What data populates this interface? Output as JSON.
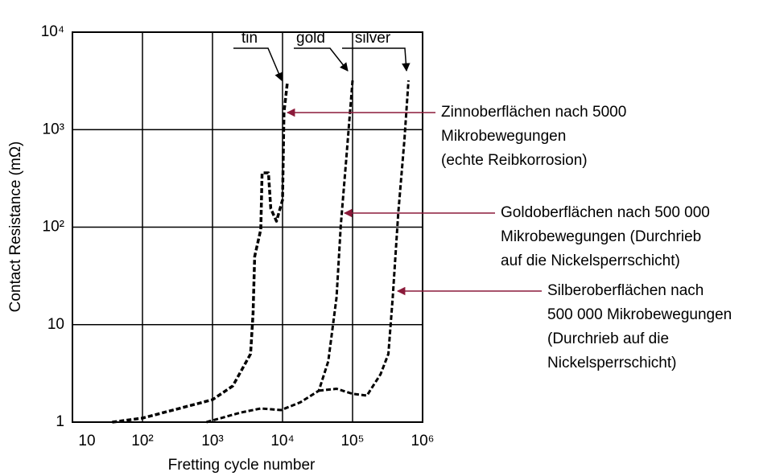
{
  "chart_data": {
    "type": "line",
    "xlabel": "Fretting cycle number",
    "ylabel": "Contact Resistance (mΩ)",
    "xscale": "log",
    "yscale": "log",
    "grid": true,
    "xlim": [
      10,
      1000000
    ],
    "xticks": [
      10,
      {
        "value": 100,
        "label": "10²"
      },
      {
        "value": 1000,
        "label": "10³"
      },
      {
        "value": 10000,
        "label": "10⁴"
      },
      {
        "value": 100000,
        "label": "10⁵"
      },
      {
        "value": 1000000,
        "label": "10⁶"
      }
    ],
    "ylim": [
      1,
      10000
    ],
    "yticks": [
      1,
      10,
      {
        "value": 100,
        "label": "10²"
      },
      {
        "value": 1000,
        "label": "10³"
      },
      {
        "value": 10000,
        "label": "10⁴"
      }
    ],
    "series": [
      {
        "name": "tin",
        "color": "#000000",
        "x": [
          37,
          100,
          1000,
          1950,
          3500,
          3800,
          4000,
          4900,
          5100,
          6300,
          6800,
          8200,
          10000,
          10500,
          11700
        ],
        "values": [
          1,
          1.1,
          1.7,
          2.35,
          5,
          13,
          50,
          95,
          360,
          360,
          155,
          115,
          190,
          1500,
          3000
        ]
      },
      {
        "name": "gold",
        "color": "#000000",
        "x": [
          820,
          2500,
          4900,
          9500,
          18000,
          33000,
          45000,
          59000,
          68000,
          81000,
          100000
        ],
        "values": [
          1,
          1.25,
          1.38,
          1.33,
          1.6,
          2.1,
          4.2,
          19,
          105,
          480,
          3200
        ]
      },
      {
        "name": "silver",
        "color": "#000000",
        "x": [
          33000,
          59000,
          100000,
          160000,
          251000,
          325000,
          375000,
          450000,
          550000,
          630000
        ],
        "values": [
          2.1,
          2.2,
          1.95,
          1.87,
          3.1,
          5,
          19,
          140,
          780,
          3200
        ]
      }
    ],
    "annotations": [
      {
        "color": "#8b1a3a",
        "lines": [
          "Zinnoberflächen nach 5000",
          "Mikrobewegungen",
          "(echte Reibkorrosion)"
        ]
      },
      {
        "color": "#8b1a3a",
        "lines": [
          "Goldoberflächen nach 500 000",
          "Mikrobewegungen (Durchrieb",
          "auf die Nickelsperrschicht)"
        ]
      },
      {
        "color": "#8b1a3a",
        "lines": [
          "Silberoberflächen nach",
          "500 000 Mikrobewegungen",
          "(Durchrieb auf die",
          "Nickelsperrschicht)"
        ]
      }
    ]
  }
}
